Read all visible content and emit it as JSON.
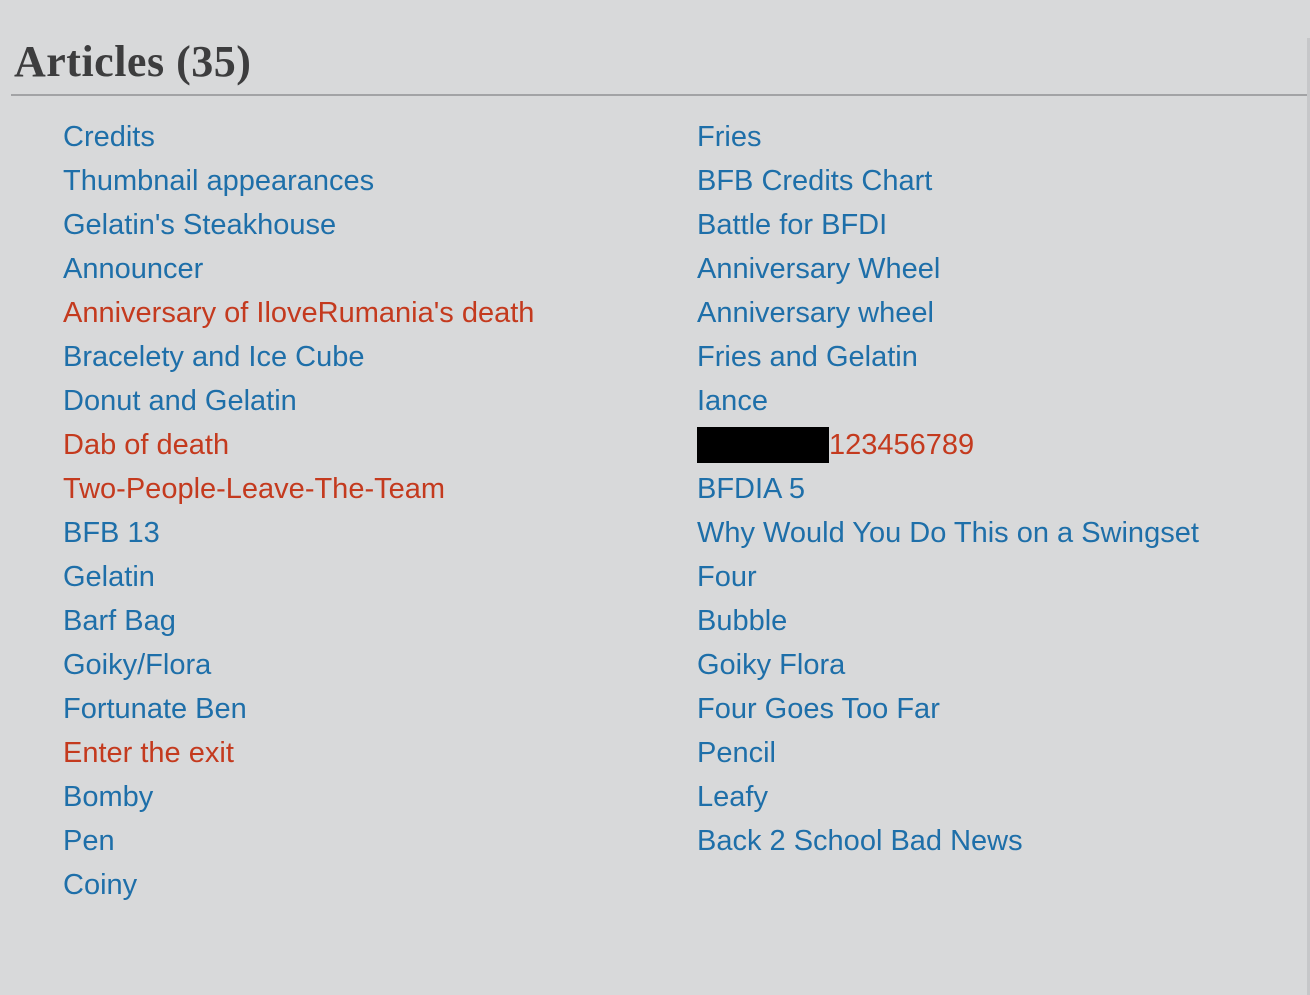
{
  "header": {
    "title": "Articles (35)"
  },
  "colors": {
    "background": "#d8d9da",
    "heading_text": "#3d3d3e",
    "divider": "#a2a3a5",
    "link_blue": "#1e6fa9",
    "link_red": "#c43a1e",
    "redaction": "#000000"
  },
  "articles": {
    "total_count": 35,
    "columns": [
      {
        "name": "left",
        "items": [
          {
            "label": "Credits",
            "type": "blue"
          },
          {
            "label": "Thumbnail appearances",
            "type": "blue"
          },
          {
            "label": "Gelatin's Steakhouse",
            "type": "blue"
          },
          {
            "label": "Announcer",
            "type": "blue"
          },
          {
            "label": "Anniversary of IloveRumania's death",
            "type": "red"
          },
          {
            "label": "Bracelety and Ice Cube",
            "type": "blue"
          },
          {
            "label": "Donut and Gelatin",
            "type": "blue"
          },
          {
            "label": "Dab of death",
            "type": "red"
          },
          {
            "label": "Two-People-Leave-The-Team",
            "type": "red"
          },
          {
            "label": "BFB 13",
            "type": "blue"
          },
          {
            "label": "Gelatin",
            "type": "blue"
          },
          {
            "label": "Barf Bag",
            "type": "blue"
          },
          {
            "label": "Goiky/Flora",
            "type": "blue"
          },
          {
            "label": "Fortunate Ben",
            "type": "blue"
          },
          {
            "label": "Enter the exit",
            "type": "red"
          },
          {
            "label": "Bomby",
            "type": "blue"
          },
          {
            "label": "Pen",
            "type": "blue"
          },
          {
            "label": "Coiny",
            "type": "blue"
          }
        ]
      },
      {
        "name": "right",
        "items": [
          {
            "label": "Fries",
            "type": "blue"
          },
          {
            "label": "BFB Credits Chart",
            "type": "blue"
          },
          {
            "label": "Battle for BFDI",
            "type": "blue"
          },
          {
            "label": "Anniversary Wheel",
            "type": "blue"
          },
          {
            "label": "Anniversary wheel",
            "type": "blue"
          },
          {
            "label": "Fries and Gelatin",
            "type": "blue"
          },
          {
            "label": "Iance",
            "type": "blue"
          },
          {
            "label": "123456789",
            "type": "red",
            "redacted_prefix": true
          },
          {
            "label": "BFDIA 5",
            "type": "blue"
          },
          {
            "label": "Why Would You Do This on a Swingset",
            "type": "blue"
          },
          {
            "label": "Four",
            "type": "blue"
          },
          {
            "label": "Bubble",
            "type": "blue"
          },
          {
            "label": "Goiky Flora",
            "type": "blue"
          },
          {
            "label": "Four Goes Too Far",
            "type": "blue"
          },
          {
            "label": "Pencil",
            "type": "blue"
          },
          {
            "label": "Leafy",
            "type": "blue"
          },
          {
            "label": "Back 2 School Bad News",
            "type": "blue"
          }
        ]
      }
    ]
  }
}
